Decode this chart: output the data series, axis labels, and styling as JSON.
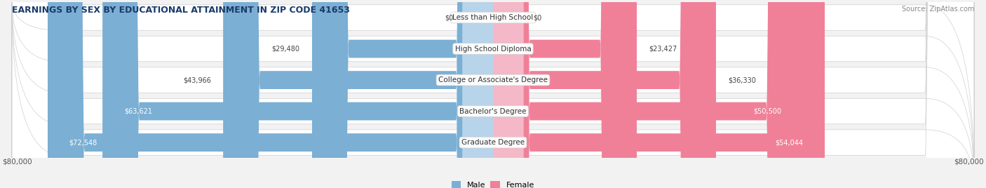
{
  "title": "EARNINGS BY SEX BY EDUCATIONAL ATTAINMENT IN ZIP CODE 41653",
  "source": "Source: ZipAtlas.com",
  "categories": [
    "Graduate Degree",
    "Bachelor's Degree",
    "College or Associate's Degree",
    "High School Diploma",
    "Less than High School"
  ],
  "male_values": [
    72548,
    63621,
    43966,
    29480,
    0
  ],
  "female_values": [
    54044,
    50500,
    36330,
    23427,
    0
  ],
  "male_color": "#7bafd4",
  "female_color": "#f08098",
  "male_color_light": "#b8d4ea",
  "female_color_light": "#f4b8c8",
  "max_value": 80000,
  "x_label_left": "$80,000",
  "x_label_right": "$80,000",
  "background_color": "#f2f2f2",
  "row_bg_even": "#e8e8e8",
  "row_bg_odd": "#f5f5f5",
  "legend_male": "Male",
  "legend_female": "Female"
}
